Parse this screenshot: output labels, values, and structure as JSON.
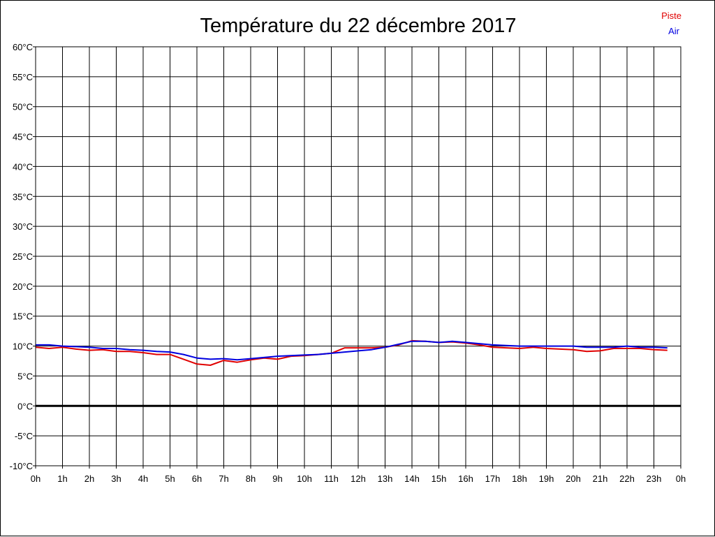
{
  "chart_data": {
    "type": "line",
    "title": "Température du 22 décembre 2017",
    "xlabel": "",
    "ylabel": "",
    "x_range": [
      0,
      24
    ],
    "ylim": [
      -10,
      60
    ],
    "y_step": 5,
    "y_unit": "°C",
    "grid": true,
    "zero_line": true,
    "legend_position": "top-right",
    "x_tick_labels": [
      "0h",
      "1h",
      "2h",
      "3h",
      "4h",
      "5h",
      "6h",
      "7h",
      "8h",
      "9h",
      "10h",
      "11h",
      "12h",
      "13h",
      "14h",
      "15h",
      "16h",
      "17h",
      "18h",
      "19h",
      "20h",
      "21h",
      "22h",
      "23h",
      "0h"
    ],
    "y_tick_labels": [
      "60°C",
      "55°C",
      "50°C",
      "45°C",
      "40°C",
      "35°C",
      "30°C",
      "25°C",
      "20°C",
      "15°C",
      "10°C",
      "5°C",
      "0°C",
      "-5°C",
      "-10°C"
    ],
    "series": [
      {
        "name": "Piste",
        "color": "#e00000",
        "x": [
          0,
          0.5,
          1,
          1.5,
          2,
          2.5,
          3,
          3.5,
          4,
          4.5,
          5,
          5.5,
          6,
          6.5,
          7,
          7.5,
          8,
          8.5,
          9,
          9.5,
          10,
          10.5,
          11,
          11.5,
          12,
          12.5,
          13,
          13.5,
          14,
          14.5,
          15,
          15.5,
          16,
          16.5,
          17,
          17.5,
          18,
          18.5,
          19,
          19.5,
          20,
          20.5,
          21,
          21.5,
          22,
          22.5,
          23,
          23.5
        ],
        "y": [
          9.8,
          9.6,
          9.8,
          9.5,
          9.3,
          9.4,
          9.1,
          9.1,
          8.9,
          8.6,
          8.6,
          7.8,
          7.0,
          6.8,
          7.6,
          7.3,
          7.7,
          8.0,
          7.8,
          8.3,
          8.4,
          8.6,
          8.8,
          9.7,
          9.7,
          9.7,
          9.8,
          10.2,
          10.9,
          10.8,
          10.6,
          10.7,
          10.5,
          10.2,
          9.8,
          9.7,
          9.6,
          9.8,
          9.6,
          9.5,
          9.4,
          9.1,
          9.2,
          9.6,
          9.6,
          9.6,
          9.4,
          9.3
        ]
      },
      {
        "name": "Air",
        "color": "#0000e0",
        "x": [
          0,
          0.5,
          1,
          1.5,
          2,
          2.5,
          3,
          3.5,
          4,
          4.5,
          5,
          5.5,
          6,
          6.5,
          7,
          7.5,
          8,
          8.5,
          9,
          9.5,
          10,
          10.5,
          11,
          11.5,
          12,
          12.5,
          13,
          13.5,
          14,
          14.5,
          15,
          15.5,
          16,
          16.5,
          17,
          17.5,
          18,
          18.5,
          19,
          19.5,
          20,
          20.5,
          21,
          21.5,
          22,
          22.5,
          23,
          23.5
        ],
        "y": [
          10.2,
          10.2,
          10.0,
          9.9,
          9.8,
          9.6,
          9.6,
          9.4,
          9.3,
          9.1,
          9.0,
          8.6,
          8.0,
          7.8,
          7.9,
          7.7,
          7.9,
          8.1,
          8.3,
          8.4,
          8.5,
          8.6,
          8.8,
          9.0,
          9.2,
          9.4,
          9.8,
          10.3,
          10.8,
          10.8,
          10.6,
          10.8,
          10.6,
          10.4,
          10.2,
          10.1,
          10.0,
          10.0,
          10.0,
          10.0,
          10.0,
          9.8,
          9.8,
          9.8,
          10.0,
          9.8,
          9.8,
          9.7
        ]
      }
    ]
  }
}
